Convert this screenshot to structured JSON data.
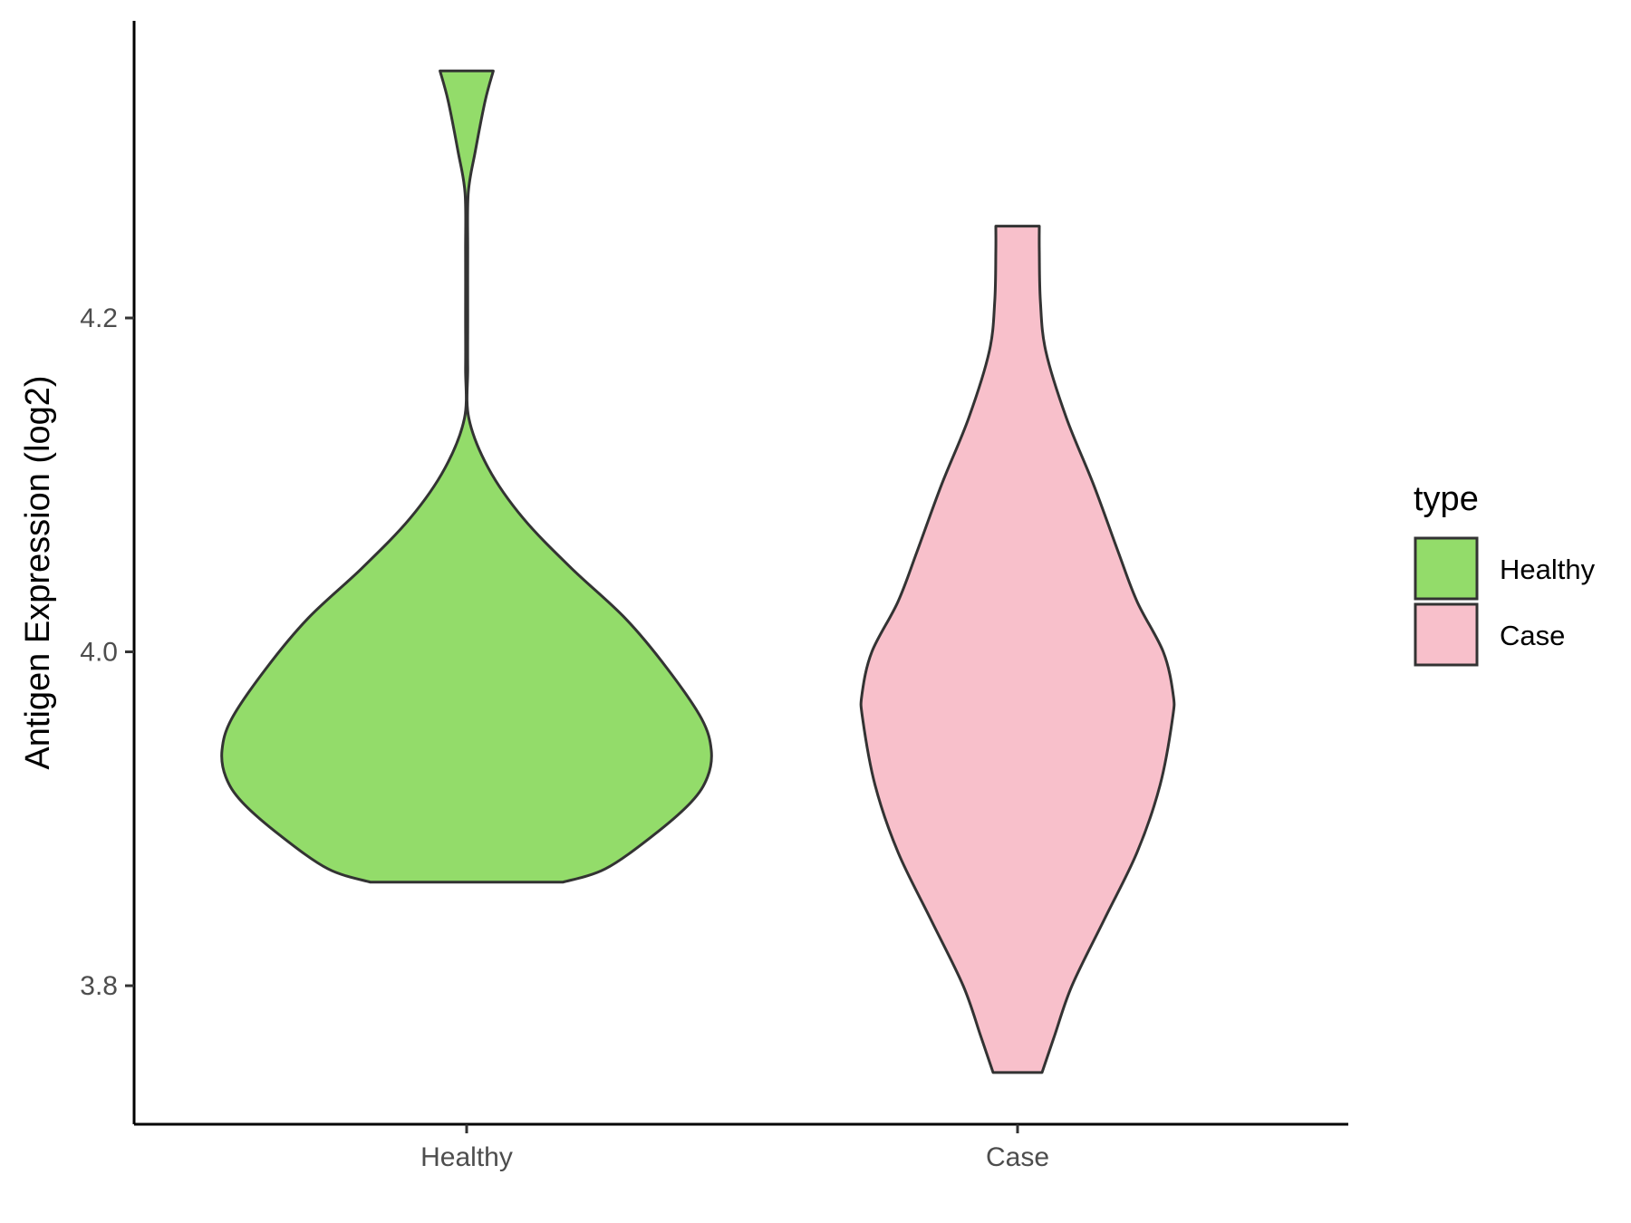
{
  "chart_data": {
    "type": "violin",
    "ylabel": "Antigen Expression (log2)",
    "xlabel": "",
    "categories": [
      "Healthy",
      "Case"
    ],
    "yticks": [
      3.8,
      4.0,
      4.2
    ],
    "ylim": [
      3.717,
      4.378
    ],
    "legend": {
      "title": "type",
      "placement": "right",
      "entries": [
        {
          "label": "Healthy",
          "color": "#93dc6a"
        },
        {
          "label": "Case",
          "color": "#f8c0cb"
        }
      ]
    },
    "series": [
      {
        "category": "Healthy",
        "color": "#93dc6a",
        "min": 3.862,
        "max": 4.348,
        "density_profile": [
          {
            "y": 3.862,
            "half_width": 0.177
          },
          {
            "y": 3.87,
            "half_width": 0.255
          },
          {
            "y": 3.89,
            "half_width": 0.343
          },
          {
            "y": 3.91,
            "half_width": 0.413
          },
          {
            "y": 3.925,
            "half_width": 0.443
          },
          {
            "y": 3.941,
            "half_width": 0.45
          },
          {
            "y": 3.96,
            "half_width": 0.432
          },
          {
            "y": 3.99,
            "half_width": 0.369
          },
          {
            "y": 4.02,
            "half_width": 0.292
          },
          {
            "y": 4.05,
            "half_width": 0.193
          },
          {
            "y": 4.08,
            "half_width": 0.104
          },
          {
            "y": 4.11,
            "half_width": 0.04
          },
          {
            "y": 4.14,
            "half_width": 0.004
          },
          {
            "y": 4.17,
            "half_width": 0.002
          },
          {
            "y": 4.2,
            "half_width": 0.002
          },
          {
            "y": 4.24,
            "half_width": 0.002
          },
          {
            "y": 4.275,
            "half_width": 0.003
          },
          {
            "y": 4.3,
            "half_width": 0.016
          },
          {
            "y": 4.33,
            "half_width": 0.034
          },
          {
            "y": 4.348,
            "half_width": 0.049
          }
        ]
      },
      {
        "category": "Case",
        "color": "#f8c0cb",
        "min": 3.748,
        "max": 4.255,
        "density_profile": [
          {
            "y": 3.748,
            "half_width": 0.045
          },
          {
            "y": 3.77,
            "half_width": 0.068
          },
          {
            "y": 3.8,
            "half_width": 0.1
          },
          {
            "y": 3.84,
            "half_width": 0.16
          },
          {
            "y": 3.88,
            "half_width": 0.22
          },
          {
            "y": 3.92,
            "half_width": 0.262
          },
          {
            "y": 3.96,
            "half_width": 0.285
          },
          {
            "y": 3.975,
            "half_width": 0.286
          },
          {
            "y": 4.0,
            "half_width": 0.268
          },
          {
            "y": 4.03,
            "half_width": 0.22
          },
          {
            "y": 4.06,
            "half_width": 0.185
          },
          {
            "y": 4.1,
            "half_width": 0.14
          },
          {
            "y": 4.14,
            "half_width": 0.09
          },
          {
            "y": 4.18,
            "half_width": 0.052
          },
          {
            "y": 4.21,
            "half_width": 0.042
          },
          {
            "y": 4.24,
            "half_width": 0.04
          },
          {
            "y": 4.255,
            "half_width": 0.04
          }
        ]
      }
    ]
  }
}
